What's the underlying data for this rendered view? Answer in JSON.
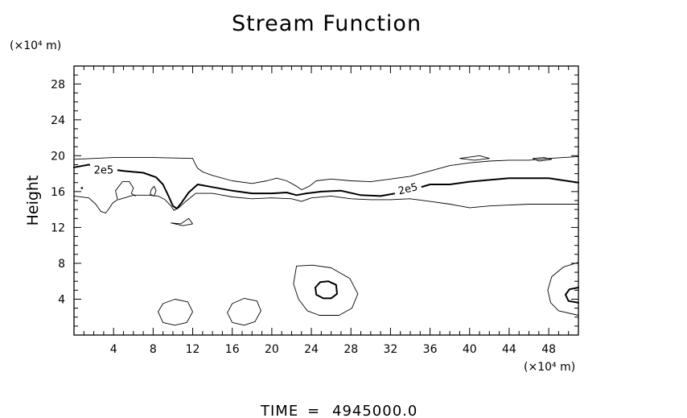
{
  "chart_data": {
    "type": "contour",
    "title": "Stream Function",
    "ylabel": "Height",
    "x_unit_label": "(×10⁴ m)",
    "y_unit_label": "(×10⁴ m)",
    "xlim": [
      0,
      51
    ],
    "ylim": [
      0,
      30
    ],
    "x_ticks": [
      4,
      8,
      12,
      16,
      20,
      24,
      28,
      32,
      36,
      40,
      44,
      48
    ],
    "y_ticks": [
      4,
      8,
      12,
      16,
      20,
      24,
      28
    ],
    "x_minor_step": 1,
    "y_minor_step": 1,
    "contour_labels": [
      {
        "text": "2e5",
        "x": 3,
        "y": 18.2,
        "angle": 0
      },
      {
        "text": "2e5",
        "x": 33.8,
        "y": 16.1,
        "angle": -14
      }
    ],
    "contours": [
      {
        "name": "upper-thin-boundary",
        "style": "thin",
        "points": [
          [
            0,
            19.6
          ],
          [
            4,
            19.8
          ],
          [
            8,
            19.8
          ],
          [
            12,
            19.7
          ],
          [
            12.2,
            19.2
          ],
          [
            12.5,
            18.6
          ],
          [
            13,
            18.2
          ],
          [
            14,
            17.8
          ],
          [
            16,
            17.2
          ],
          [
            18,
            16.9
          ],
          [
            19.5,
            17.2
          ],
          [
            20.5,
            17.5
          ],
          [
            21.5,
            17.2
          ],
          [
            22.5,
            16.6
          ],
          [
            23,
            16.2
          ],
          [
            23.8,
            16.6
          ],
          [
            24.5,
            17.2
          ],
          [
            26,
            17.4
          ],
          [
            28,
            17.2
          ],
          [
            30,
            17.1
          ],
          [
            32,
            17.4
          ],
          [
            34,
            17.7
          ],
          [
            36,
            18.3
          ],
          [
            38,
            18.9
          ],
          [
            40,
            19.2
          ],
          [
            42,
            19.4
          ],
          [
            44,
            19.5
          ],
          [
            46,
            19.5
          ],
          [
            48,
            19.7
          ],
          [
            51,
            19.9
          ]
        ]
      },
      {
        "name": "main-thick-contour",
        "style": "thick",
        "points": [
          [
            0,
            18.7
          ],
          [
            1.5,
            19
          ],
          [
            3,
            18.6
          ],
          [
            5,
            18.3
          ],
          [
            7,
            18.1
          ],
          [
            8.3,
            17.6
          ],
          [
            9,
            16.8
          ],
          [
            9.6,
            15.4
          ],
          [
            10,
            14.4
          ],
          [
            10.4,
            14.1
          ],
          [
            10.9,
            14.8
          ],
          [
            11.6,
            15.9
          ],
          [
            12.5,
            16.8
          ],
          [
            14,
            16.5
          ],
          [
            16,
            16.1
          ],
          [
            18,
            15.8
          ],
          [
            20,
            15.8
          ],
          [
            21.5,
            15.9
          ],
          [
            22.5,
            15.6
          ],
          [
            23.5,
            15.8
          ],
          [
            25,
            16
          ],
          [
            27,
            16.1
          ],
          [
            29,
            15.6
          ],
          [
            31,
            15.5
          ],
          [
            32.5,
            15.8
          ],
          [
            34.5,
            16.3
          ],
          [
            36,
            16.8
          ],
          [
            38,
            16.8
          ],
          [
            40,
            17.1
          ],
          [
            42,
            17.3
          ],
          [
            44,
            17.5
          ],
          [
            46,
            17.5
          ],
          [
            48,
            17.5
          ],
          [
            51,
            17
          ]
        ]
      },
      {
        "name": "lower-thin-contour",
        "style": "thin",
        "points": [
          [
            4.5,
            15.1
          ],
          [
            6,
            15.6
          ],
          [
            7.5,
            15.6
          ],
          [
            8.5,
            15.5
          ],
          [
            9.2,
            15.1
          ],
          [
            9.8,
            14.4
          ],
          [
            10.1,
            13.9
          ],
          [
            10.6,
            14.2
          ],
          [
            11.3,
            14.9
          ],
          [
            12.3,
            15.8
          ],
          [
            14,
            15.8
          ],
          [
            16,
            15.4
          ],
          [
            18,
            15.2
          ],
          [
            20,
            15.3
          ],
          [
            22,
            15.2
          ],
          [
            23,
            14.9
          ],
          [
            24,
            15.3
          ],
          [
            26,
            15.5
          ],
          [
            28,
            15.2
          ],
          [
            30,
            15.1
          ],
          [
            32,
            15.1
          ],
          [
            34,
            15.2
          ],
          [
            36,
            14.9
          ],
          [
            38,
            14.6
          ],
          [
            40,
            14.2
          ],
          [
            42,
            14.4
          ],
          [
            44,
            14.5
          ],
          [
            46,
            14.6
          ],
          [
            48,
            14.6
          ],
          [
            51,
            14.6
          ]
        ]
      },
      {
        "name": "left-lobe",
        "style": "thin",
        "points": [
          [
            0,
            15.5
          ],
          [
            1.5,
            15.3
          ],
          [
            2.2,
            14.6
          ],
          [
            2.7,
            13.8
          ],
          [
            3.2,
            13.6
          ],
          [
            3.6,
            14.2
          ],
          [
            3.9,
            14.7
          ],
          [
            4.4,
            15.1
          ],
          [
            4.2,
            16.1
          ],
          [
            4.9,
            17.1
          ],
          [
            5.6,
            17.1
          ],
          [
            6,
            16.4
          ],
          [
            5.8,
            15.8
          ],
          [
            6.2,
            15.5
          ]
        ]
      },
      {
        "name": "small-loop-8",
        "style": "thin",
        "closed": true,
        "points": [
          [
            7.8,
            16.2
          ],
          [
            8.1,
            16.6
          ],
          [
            8.3,
            16.1
          ],
          [
            8.1,
            15.5
          ],
          [
            7.7,
            15.7
          ],
          [
            7.8,
            16.2
          ]
        ]
      },
      {
        "name": "small-loop-11",
        "style": "thin",
        "closed": true,
        "points": [
          [
            9.8,
            12.5
          ],
          [
            10.8,
            12.4
          ],
          [
            11.6,
            13
          ],
          [
            12,
            12.4
          ],
          [
            11,
            12.2
          ],
          [
            9.8,
            12.5
          ]
        ]
      },
      {
        "name": "bottom-ring-10",
        "style": "thin",
        "closed": true,
        "points": [
          [
            9,
            3.5
          ],
          [
            10.2,
            4
          ],
          [
            11.5,
            3.7
          ],
          [
            12,
            2.6
          ],
          [
            11.4,
            1.4
          ],
          [
            10.2,
            1.1
          ],
          [
            9,
            1.4
          ],
          [
            8.5,
            2.6
          ],
          [
            9,
            3.5
          ]
        ]
      },
      {
        "name": "bottom-ring-17",
        "style": "thin",
        "closed": true,
        "points": [
          [
            16,
            3.5
          ],
          [
            17.2,
            4.1
          ],
          [
            18.5,
            3.8
          ],
          [
            18.9,
            2.7
          ],
          [
            18.3,
            1.5
          ],
          [
            17.2,
            1.1
          ],
          [
            16,
            1.4
          ],
          [
            15.5,
            2.5
          ],
          [
            16,
            3.5
          ]
        ]
      },
      {
        "name": "ring-outer-25",
        "style": "thin",
        "closed": true,
        "points": [
          [
            22.5,
            7.7
          ],
          [
            24.1,
            7.8
          ],
          [
            26,
            7.5
          ],
          [
            27.9,
            6.3
          ],
          [
            28.7,
            4.6
          ],
          [
            28.1,
            3
          ],
          [
            26.8,
            2.2
          ],
          [
            24.8,
            2.2
          ],
          [
            23.6,
            2.7
          ],
          [
            22.7,
            4
          ],
          [
            22.2,
            5.7
          ],
          [
            22.5,
            7.7
          ]
        ]
      },
      {
        "name": "ring-inner-25",
        "style": "thick",
        "closed": true,
        "points": [
          [
            24.4,
            5.3
          ],
          [
            24.9,
            5.9
          ],
          [
            25.7,
            6
          ],
          [
            26.5,
            5.6
          ],
          [
            26.6,
            4.6
          ],
          [
            26,
            4.1
          ],
          [
            25.2,
            4.1
          ],
          [
            24.5,
            4.5
          ],
          [
            24.4,
            5.3
          ]
        ]
      },
      {
        "name": "right-edge-outer",
        "style": "thin",
        "points": [
          [
            51,
            8.1
          ],
          [
            49.5,
            7.6
          ],
          [
            48.3,
            6.5
          ],
          [
            47.9,
            5
          ],
          [
            48.2,
            3.6
          ],
          [
            49,
            2.7
          ],
          [
            51,
            2.2
          ]
        ]
      },
      {
        "name": "right-edge-inner",
        "style": "thick",
        "points": [
          [
            51,
            5.3
          ],
          [
            50.1,
            5.1
          ],
          [
            49.7,
            4.5
          ],
          [
            50,
            3.8
          ],
          [
            51,
            3.6
          ]
        ]
      },
      {
        "name": "top-right-islet-1",
        "style": "thin",
        "points": [
          [
            39,
            19.7
          ],
          [
            41,
            20
          ],
          [
            42,
            19.7
          ],
          [
            40.5,
            19.5
          ],
          [
            39,
            19.7
          ]
        ]
      },
      {
        "name": "top-right-islet-2",
        "style": "thin",
        "points": [
          [
            46.4,
            19.7
          ],
          [
            47.5,
            19.8
          ],
          [
            48.3,
            19.6
          ],
          [
            47,
            19.4
          ],
          [
            46.4,
            19.7
          ]
        ]
      }
    ],
    "time_label": "TIME",
    "time_separator": "=",
    "time_value": "4945000.0"
  }
}
